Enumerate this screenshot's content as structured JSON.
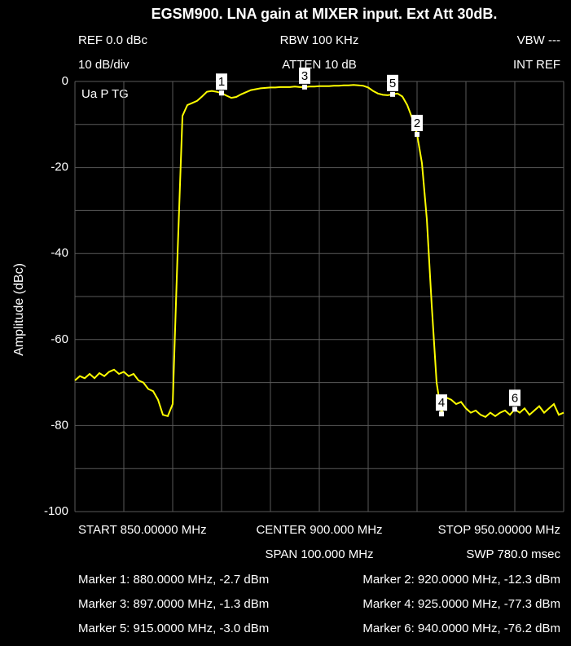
{
  "chart_data": {
    "type": "line",
    "title": "EGSM900. LNA gain at MIXER input. Ext Att 30dB.",
    "header": [
      "REF 0.0 dBc",
      "RBW 100 KHz",
      "VBW ---",
      "10 dB/div",
      "ATTEN 10 dB",
      "INT REF"
    ],
    "plot_note": "Ua P TG",
    "footer": [
      "START 850.00000 MHz",
      "CENTER 900.000 MHz",
      "STOP 950.00000 MHz",
      "SPAN 100.000 MHz",
      "SWP 780.0 msec"
    ],
    "y_label": "Amplitude (dBc)",
    "xlim": [
      850,
      950
    ],
    "ylim": [
      -100,
      0
    ],
    "yticks": [
      0,
      -20,
      -40,
      -60,
      -80,
      -100
    ],
    "xgrid": [
      850,
      860,
      870,
      880,
      890,
      900,
      910,
      920,
      930,
      940,
      950
    ],
    "ygrid": [
      0,
      -10,
      -20,
      -30,
      -40,
      -50,
      -60,
      -70,
      -80,
      -90,
      -100
    ],
    "x": [
      850,
      851,
      852,
      853,
      854,
      855,
      856,
      857,
      858,
      859,
      860,
      861,
      862,
      863,
      864,
      865,
      866,
      867,
      868,
      869,
      870,
      871,
      872,
      873,
      874,
      875,
      876,
      877,
      878,
      879,
      880,
      881,
      882,
      883,
      884,
      885,
      886,
      887,
      888,
      889,
      890,
      891,
      892,
      893,
      894,
      895,
      896,
      897,
      898,
      899,
      900,
      901,
      902,
      903,
      904,
      905,
      906,
      907,
      908,
      909,
      910,
      911,
      912,
      913,
      914,
      915,
      916,
      917,
      918,
      919,
      920,
      921,
      922,
      923,
      924,
      925,
      926,
      927,
      928,
      929,
      930,
      931,
      932,
      933,
      934,
      935,
      936,
      937,
      938,
      939,
      940,
      941,
      942,
      943,
      944,
      945,
      946,
      947,
      948,
      949,
      950
    ],
    "series": [
      {
        "color": "#ffff00",
        "values": [
          -69.5,
          -68.5,
          -69,
          -68,
          -69,
          -67.8,
          -68.5,
          -67.5,
          -67,
          -68,
          -67.5,
          -68.5,
          -68,
          -69.5,
          -70,
          -71.5,
          -72,
          -74,
          -77.5,
          -77.8,
          -75,
          -40,
          -8,
          -5.5,
          -5,
          -4.5,
          -3.5,
          -2.4,
          -2.2,
          -2.4,
          -2.7,
          -3.3,
          -3.8,
          -3.6,
          -3,
          -2.5,
          -2,
          -1.8,
          -1.6,
          -1.5,
          -1.4,
          -1.4,
          -1.3,
          -1.3,
          -1.3,
          -1.2,
          -1.3,
          -1.3,
          -1.2,
          -1.2,
          -1.1,
          -1.1,
          -1.1,
          -1,
          -1,
          -0.9,
          -0.9,
          -0.8,
          -0.9,
          -1,
          -1.4,
          -2.2,
          -2.8,
          -3.1,
          -3.2,
          -3,
          -2.8,
          -3.5,
          -5.5,
          -8.5,
          -12.3,
          -19,
          -32,
          -52,
          -70,
          -77.3,
          -73.5,
          -74,
          -75,
          -74.5,
          -76,
          -77,
          -76.5,
          -77.5,
          -78,
          -77,
          -77.8,
          -77,
          -76.5,
          -77.5,
          -76.2,
          -77,
          -76,
          -77.5,
          -76.5,
          -75.5,
          -77,
          -76,
          -75,
          -77.5,
          -77
        ]
      }
    ],
    "markers": [
      {
        "label": "1",
        "x": 880,
        "y": -2.7,
        "text": "Marker 1: 880.0000 MHz, -2.7 dBm"
      },
      {
        "label": "2",
        "x": 920,
        "y": -12.3,
        "text": "Marker 2: 920.0000 MHz, -12.3 dBm"
      },
      {
        "label": "3",
        "x": 897,
        "y": -1.3,
        "text": "Marker 3: 897.0000 MHz, -1.3 dBm"
      },
      {
        "label": "4",
        "x": 925,
        "y": -77.3,
        "text": "Marker 4: 925.0000 MHz, -77.3 dBm"
      },
      {
        "label": "5",
        "x": 915,
        "y": -3.0,
        "text": "Marker 5: 915.0000 MHz, -3.0 dBm"
      },
      {
        "label": "6",
        "x": 940,
        "y": -76.2,
        "text": "Marker 6: 940.0000 MHz, -76.2 dBm"
      }
    ]
  }
}
